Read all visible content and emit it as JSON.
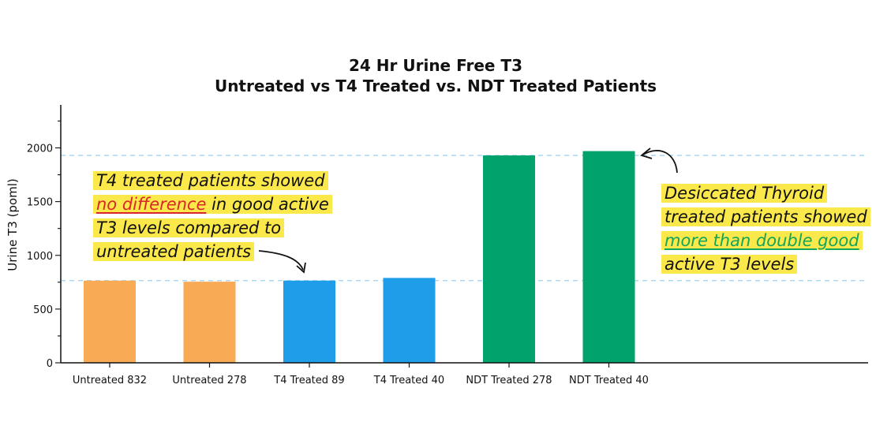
{
  "chart_data": {
    "type": "bar",
    "title": "24 Hr Urine Free T3\nUntreated vs T4 Treated vs. NDT Treated Patients",
    "title_lines": [
      "24 Hr Urine Free T3",
      "Untreated vs T4 Treated vs. NDT Treated Patients"
    ],
    "xlabel": "",
    "ylabel": "Urine T3 (poml)",
    "ylim": [
      0,
      2400
    ],
    "yticks": [
      0,
      500,
      1000,
      1500,
      2000
    ],
    "grid": false,
    "categories": [
      "Untreated 832",
      "Untreated 278",
      "T4 Treated 89",
      "T4 Treated 40",
      "NDT Treated 278",
      "NDT Treated 40"
    ],
    "values": [
      765,
      755,
      765,
      790,
      1930,
      1970
    ],
    "bar_colors": [
      "#f8aa55",
      "#f8aa55",
      "#1f9de8",
      "#1f9de8",
      "#02a26d",
      "#02a26d"
    ],
    "reference_lines": [
      765,
      1930
    ],
    "reference_line_color": "#9fd3f0"
  },
  "annotations": {
    "left": {
      "line1": "T4 treated patients showed",
      "line2_emph": "no difference",
      "line2_rest": " in good active",
      "line3": "T3 levels compared to",
      "line4": "untreated patients"
    },
    "right": {
      "line1": "Desiccated Thyroid",
      "line2": "treated patients showed",
      "line3_emph": "more than double good",
      "line4": "active T3 levels"
    },
    "highlight_color": "#fbe84a",
    "emphasis_colors": {
      "negative": "#d9262b",
      "positive": "#14a55a"
    }
  }
}
